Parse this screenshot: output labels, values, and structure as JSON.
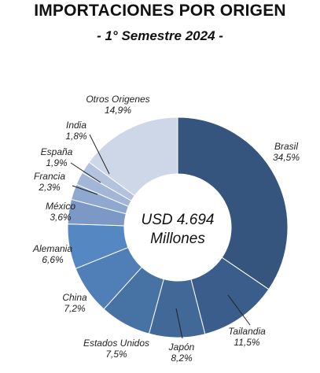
{
  "chart_data": {
    "type": "pie",
    "title": "IMPORTACIONES POR ORIGEN",
    "subtitle": "- 1° Semestre 2024 -",
    "center_label": [
      "USD 4.694",
      "Millones"
    ],
    "slices": [
      {
        "name": "Brasil",
        "value": 34.5,
        "label": "34,5%",
        "color": "#35547e"
      },
      {
        "name": "Tailandia",
        "value": 11.5,
        "label": "11,5%",
        "color": "#3b5d8b"
      },
      {
        "name": "Japón",
        "value": 8.2,
        "label": "8,2%",
        "color": "#416896"
      },
      {
        "name": "Estados Unidos",
        "value": 7.5,
        "label": "7,5%",
        "color": "#4772a4"
      },
      {
        "name": "China",
        "value": 7.2,
        "label": "7,2%",
        "color": "#4f7fb6"
      },
      {
        "name": "Alemania",
        "value": 6.6,
        "label": "6,6%",
        "color": "#5588c2"
      },
      {
        "name": "México",
        "value": 3.6,
        "label": "3,6%",
        "color": "#7b98c6"
      },
      {
        "name": "Francia",
        "value": 2.3,
        "label": "2,3%",
        "color": "#8fa8cf"
      },
      {
        "name": "España",
        "value": 1.9,
        "label": "1,9%",
        "color": "#a2b6d7"
      },
      {
        "name": "India",
        "value": 1.8,
        "label": "1,8%",
        "color": "#b3c3de"
      },
      {
        "name": "Otros Origenes",
        "value": 14.9,
        "label": "14,9%",
        "color": "#cdd7e8"
      }
    ]
  }
}
